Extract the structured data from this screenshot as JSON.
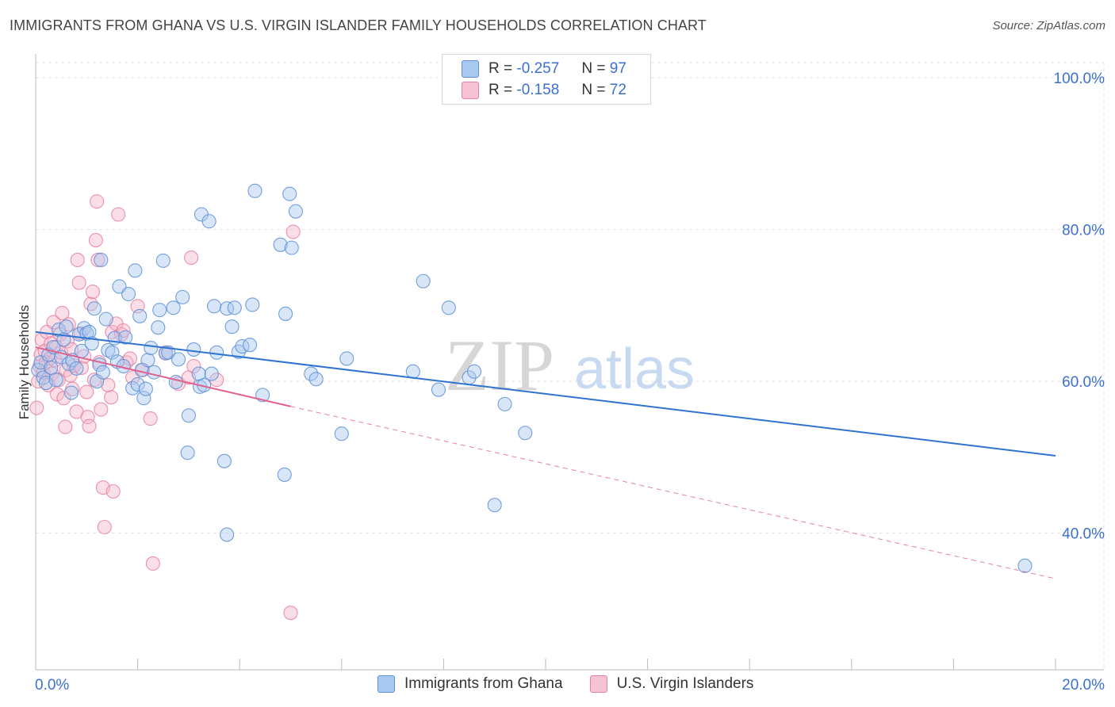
{
  "header": {
    "title": "IMMIGRANTS FROM GHANA VS U.S. VIRGIN ISLANDER FAMILY HOUSEHOLDS CORRELATION CHART",
    "source": "Source: ZipAtlas.com"
  },
  "legend": {
    "r_label": "R =",
    "n_label": "N =",
    "series": [
      {
        "name": "Immigrants from Ghana",
        "r": "-0.257",
        "n": "97"
      },
      {
        "name": "U.S. Virgin Islanders",
        "r": "-0.158",
        "n": "72"
      }
    ]
  },
  "watermark": {
    "zip": "ZIP",
    "atlas": "atlas"
  },
  "colors": {
    "blue_fill": "#a9c8f0",
    "blue_stroke": "#5b8fd6",
    "blue_line": "#2f73d1",
    "pink_fill": "#f6b7c9",
    "pink_stroke": "#e77fa0",
    "pink_line": "#e0608d",
    "tick_label": "#3b6fd0",
    "grid": "#e3e3e3"
  },
  "chart_data": {
    "type": "scatter",
    "title": "IMMIGRANTS FROM GHANA VS U.S. VIRGIN ISLANDER FAMILY HOUSEHOLDS CORRELATION CHART",
    "xlabel": "",
    "ylabel": "Family Households",
    "xlim": [
      0,
      20
    ],
    "ylim": [
      22,
      102
    ],
    "x_tick_labels": [
      "0.0%",
      "20.0%"
    ],
    "y_ticks": [
      40,
      60,
      80,
      100
    ],
    "y_tick_labels": [
      "40.0%",
      "60.0%",
      "80.0%",
      "100.0%"
    ],
    "grid": true,
    "legend_position": "top-center",
    "series": [
      {
        "name": "Immigrants from Ghana",
        "color": "blue",
        "r": -0.257,
        "n": 97,
        "trend": {
          "x": [
            0,
            20
          ],
          "y": [
            66.5,
            50.2
          ],
          "dashed_extension": false
        },
        "points": [
          [
            0.05,
            61.5
          ],
          [
            0.1,
            62.5
          ],
          [
            0.15,
            60.5
          ],
          [
            0.2,
            59.8
          ],
          [
            0.25,
            63.5
          ],
          [
            0.3,
            61.8
          ],
          [
            0.35,
            64.5
          ],
          [
            0.4,
            60.2
          ],
          [
            0.45,
            66.8
          ],
          [
            0.5,
            63.2
          ],
          [
            0.55,
            65.5
          ],
          [
            0.6,
            67.2
          ],
          [
            0.65,
            62.3
          ],
          [
            0.7,
            58.5
          ],
          [
            0.72,
            62.8
          ],
          [
            0.8,
            61.7
          ],
          [
            0.85,
            66.2
          ],
          [
            0.9,
            64.0
          ],
          [
            0.95,
            67.0
          ],
          [
            1.0,
            66.3
          ],
          [
            1.05,
            66.5
          ],
          [
            1.1,
            65.0
          ],
          [
            1.15,
            69.6
          ],
          [
            1.2,
            60.0
          ],
          [
            1.25,
            62.2
          ],
          [
            1.28,
            76.0
          ],
          [
            1.32,
            61.2
          ],
          [
            1.38,
            68.2
          ],
          [
            1.42,
            64.1
          ],
          [
            1.5,
            63.8
          ],
          [
            1.55,
            65.7
          ],
          [
            1.6,
            62.6
          ],
          [
            1.64,
            72.5
          ],
          [
            1.72,
            62.0
          ],
          [
            1.76,
            65.8
          ],
          [
            1.82,
            71.5
          ],
          [
            1.9,
            59.1
          ],
          [
            1.95,
            74.6
          ],
          [
            2.0,
            59.6
          ],
          [
            2.04,
            68.6
          ],
          [
            2.08,
            61.5
          ],
          [
            2.12,
            57.8
          ],
          [
            2.16,
            59.0
          ],
          [
            2.2,
            62.8
          ],
          [
            2.26,
            64.4
          ],
          [
            2.32,
            61.2
          ],
          [
            2.4,
            67.1
          ],
          [
            2.43,
            69.4
          ],
          [
            2.5,
            75.9
          ],
          [
            2.55,
            63.7
          ],
          [
            2.6,
            63.8
          ],
          [
            2.7,
            69.7
          ],
          [
            2.75,
            59.9
          ],
          [
            2.8,
            62.9
          ],
          [
            2.88,
            71.1
          ],
          [
            2.98,
            50.6
          ],
          [
            3.0,
            55.5
          ],
          [
            3.1,
            64.2
          ],
          [
            3.2,
            61.0
          ],
          [
            3.22,
            59.3
          ],
          [
            3.25,
            82.0
          ],
          [
            3.3,
            59.5
          ],
          [
            3.4,
            81.1
          ],
          [
            3.45,
            61.0
          ],
          [
            3.5,
            69.9
          ],
          [
            3.55,
            63.8
          ],
          [
            3.7,
            49.5
          ],
          [
            3.75,
            69.6
          ],
          [
            3.85,
            67.2
          ],
          [
            3.9,
            69.7
          ],
          [
            3.98,
            63.9
          ],
          [
            4.05,
            64.6
          ],
          [
            4.2,
            64.8
          ],
          [
            4.25,
            70.1
          ],
          [
            4.3,
            85.1
          ],
          [
            4.45,
            58.2
          ],
          [
            4.8,
            78.0
          ],
          [
            4.88,
            47.7
          ],
          [
            4.9,
            68.9
          ],
          [
            4.98,
            84.7
          ],
          [
            5.02,
            77.6
          ],
          [
            5.1,
            82.4
          ],
          [
            5.4,
            61.0
          ],
          [
            5.5,
            60.3
          ],
          [
            6.0,
            53.1
          ],
          [
            6.1,
            63.0
          ],
          [
            7.4,
            61.3
          ],
          [
            7.6,
            73.2
          ],
          [
            7.9,
            58.9
          ],
          [
            8.1,
            69.7
          ],
          [
            8.5,
            60.5
          ],
          [
            8.6,
            61.3
          ],
          [
            9.0,
            43.7
          ],
          [
            9.2,
            57.0
          ],
          [
            9.6,
            53.2
          ],
          [
            3.75,
            39.8
          ],
          [
            19.4,
            35.7
          ]
        ]
      },
      {
        "name": "U.S. Virgin Islanders",
        "color": "pink",
        "r": -0.158,
        "n": 72,
        "trend": {
          "x": [
            0,
            5.0
          ],
          "y": [
            64.5,
            56.7
          ],
          "dashed_extension": true,
          "dashed_to": [
            20,
            34.0
          ]
        },
        "points": [
          [
            0.02,
            56.5
          ],
          [
            0.05,
            60.0
          ],
          [
            0.08,
            62.0
          ],
          [
            0.1,
            63.5
          ],
          [
            0.12,
            65.5
          ],
          [
            0.15,
            61.2
          ],
          [
            0.18,
            64.0
          ],
          [
            0.2,
            62.5
          ],
          [
            0.22,
            66.5
          ],
          [
            0.25,
            59.5
          ],
          [
            0.28,
            63.0
          ],
          [
            0.3,
            65.0
          ],
          [
            0.32,
            61.0
          ],
          [
            0.35,
            67.8
          ],
          [
            0.38,
            62.8
          ],
          [
            0.4,
            64.5
          ],
          [
            0.42,
            58.3
          ],
          [
            0.45,
            60.2
          ],
          [
            0.48,
            66.2
          ],
          [
            0.5,
            63.8
          ],
          [
            0.52,
            69.0
          ],
          [
            0.55,
            57.8
          ],
          [
            0.58,
            54.0
          ],
          [
            0.6,
            61.5
          ],
          [
            0.62,
            65.3
          ],
          [
            0.65,
            67.5
          ],
          [
            0.68,
            60.8
          ],
          [
            0.7,
            64.2
          ],
          [
            0.72,
            59.0
          ],
          [
            0.75,
            62.1
          ],
          [
            0.8,
            56.0
          ],
          [
            0.82,
            76.0
          ],
          [
            0.85,
            73.0
          ],
          [
            0.88,
            66.3
          ],
          [
            0.9,
            61.8
          ],
          [
            0.95,
            63.3
          ],
          [
            1.0,
            58.6
          ],
          [
            1.02,
            55.3
          ],
          [
            1.05,
            54.1
          ],
          [
            1.08,
            70.2
          ],
          [
            1.12,
            71.8
          ],
          [
            1.15,
            60.2
          ],
          [
            1.18,
            78.6
          ],
          [
            1.2,
            83.7
          ],
          [
            1.22,
            76.0
          ],
          [
            1.25,
            62.5
          ],
          [
            1.28,
            56.3
          ],
          [
            1.32,
            46.0
          ],
          [
            1.35,
            40.8
          ],
          [
            1.42,
            59.5
          ],
          [
            1.48,
            57.9
          ],
          [
            1.5,
            66.5
          ],
          [
            1.52,
            45.5
          ],
          [
            1.58,
            67.6
          ],
          [
            1.62,
            82.0
          ],
          [
            1.68,
            66.2
          ],
          [
            1.72,
            66.7
          ],
          [
            1.78,
            62.5
          ],
          [
            1.85,
            63.0
          ],
          [
            1.9,
            60.5
          ],
          [
            2.0,
            69.9
          ],
          [
            2.1,
            61.5
          ],
          [
            2.25,
            55.1
          ],
          [
            2.3,
            36.0
          ],
          [
            2.55,
            63.8
          ],
          [
            2.8,
            59.7
          ],
          [
            3.0,
            60.5
          ],
          [
            3.05,
            76.3
          ],
          [
            3.1,
            62.0
          ],
          [
            3.55,
            60.2
          ],
          [
            5.05,
            79.7
          ],
          [
            5.0,
            29.5
          ]
        ]
      }
    ]
  }
}
